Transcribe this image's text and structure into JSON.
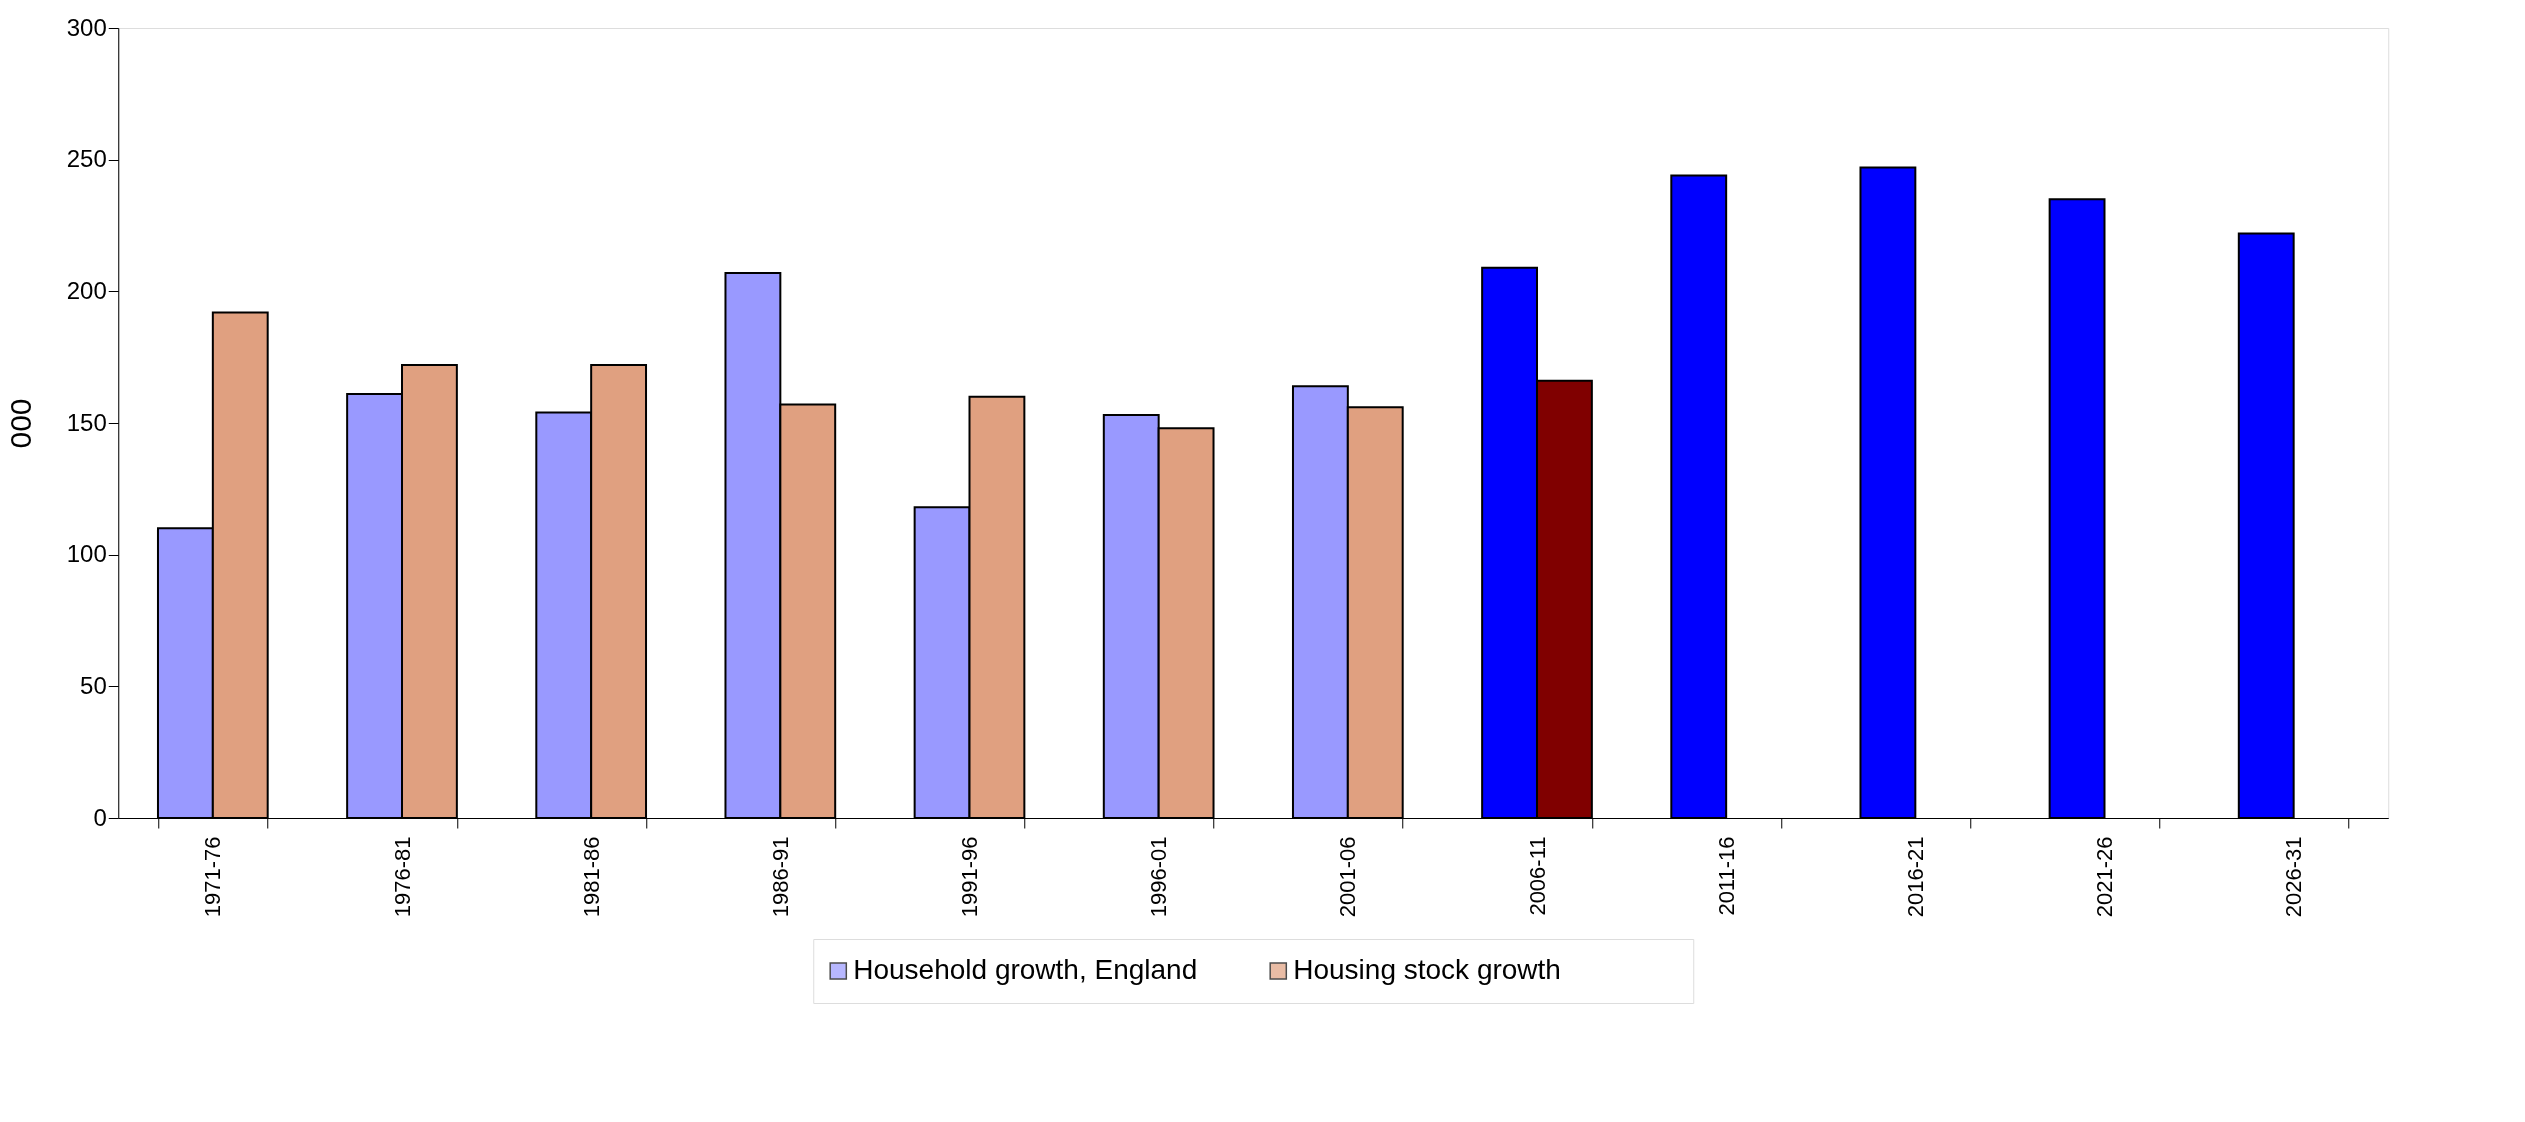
{
  "chart_data": {
    "type": "bar",
    "ylabel": "000",
    "categories": [
      "1971-76",
      "1976-81",
      "1981-86",
      "1986-91",
      "1991-96",
      "1996-01",
      "2001-06",
      "2006-11",
      "2011-16",
      "2016-21",
      "2021-26",
      "2026-31"
    ],
    "series": [
      {
        "name": "Household growth, England",
        "color": "#9999ff",
        "colors": [
          "#9999ff",
          "#9999ff",
          "#9999ff",
          "#9999ff",
          "#9999ff",
          "#9999ff",
          "#9999ff",
          "#0000ff",
          "#0000ff",
          "#0000ff",
          "#0000ff",
          "#0000ff"
        ],
        "values": [
          110,
          161,
          154,
          207,
          118,
          153,
          164,
          209,
          244,
          247,
          235,
          222
        ]
      },
      {
        "name": "Housing stock growth",
        "color": "#e0a080",
        "colors": [
          "#e0a080",
          "#e0a080",
          "#e0a080",
          "#e0a080",
          "#e0a080",
          "#e0a080",
          "#e0a080",
          "#800000",
          null,
          null,
          null,
          null
        ],
        "values": [
          192,
          172,
          172,
          157,
          160,
          148,
          156,
          166,
          null,
          null,
          null,
          null
        ]
      }
    ],
    "ylim": [
      0,
      300
    ],
    "yticks": [
      0,
      50,
      100,
      150,
      200,
      250,
      300
    ],
    "grid": false,
    "legend": "bottom"
  }
}
